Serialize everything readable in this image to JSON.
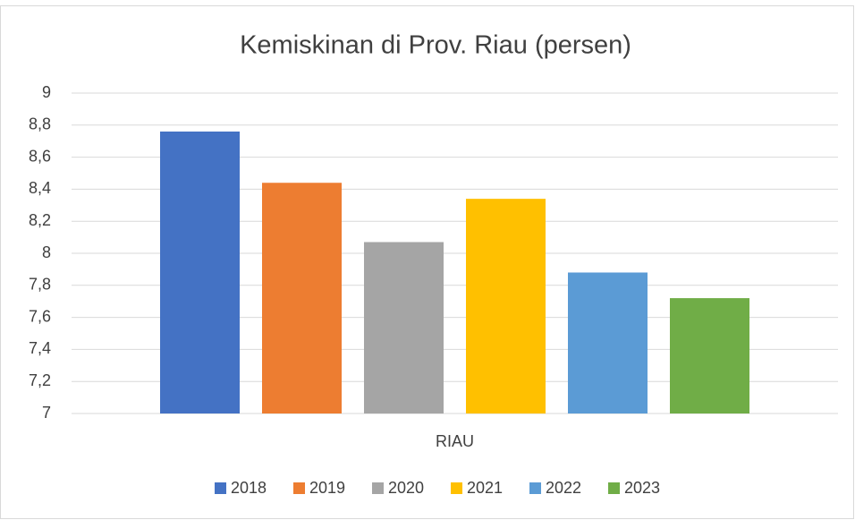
{
  "chart_data": {
    "type": "bar",
    "title": "Kemiskinan di Prov. Riau (persen)",
    "categories": [
      "RIAU"
    ],
    "series": [
      {
        "name": "2018",
        "color": "#4472c4",
        "values": [
          8.76
        ]
      },
      {
        "name": "2019",
        "color": "#ed7d31",
        "values": [
          8.44
        ]
      },
      {
        "name": "2020",
        "color": "#a5a5a5",
        "values": [
          8.07
        ]
      },
      {
        "name": "2021",
        "color": "#ffc000",
        "values": [
          8.34
        ]
      },
      {
        "name": "2022",
        "color": "#5b9bd5",
        "values": [
          7.88
        ]
      },
      {
        "name": "2023",
        "color": "#70ad47",
        "values": [
          7.72
        ]
      }
    ],
    "ylim": [
      7,
      9
    ],
    "yticks": [
      7,
      {
        "value": 7.2,
        "label": "7,2"
      },
      {
        "value": 7.4,
        "label": "7,4"
      },
      {
        "value": 7.6,
        "label": "7,6"
      },
      {
        "value": 7.8,
        "label": "7,8"
      },
      8,
      {
        "value": 8.2,
        "label": "8,2"
      },
      {
        "value": 8.4,
        "label": "8,4"
      },
      {
        "value": 8.6,
        "label": "8,6"
      },
      {
        "value": 8.8,
        "label": "8,8"
      },
      9
    ],
    "grid": true,
    "legend": "bottom"
  }
}
